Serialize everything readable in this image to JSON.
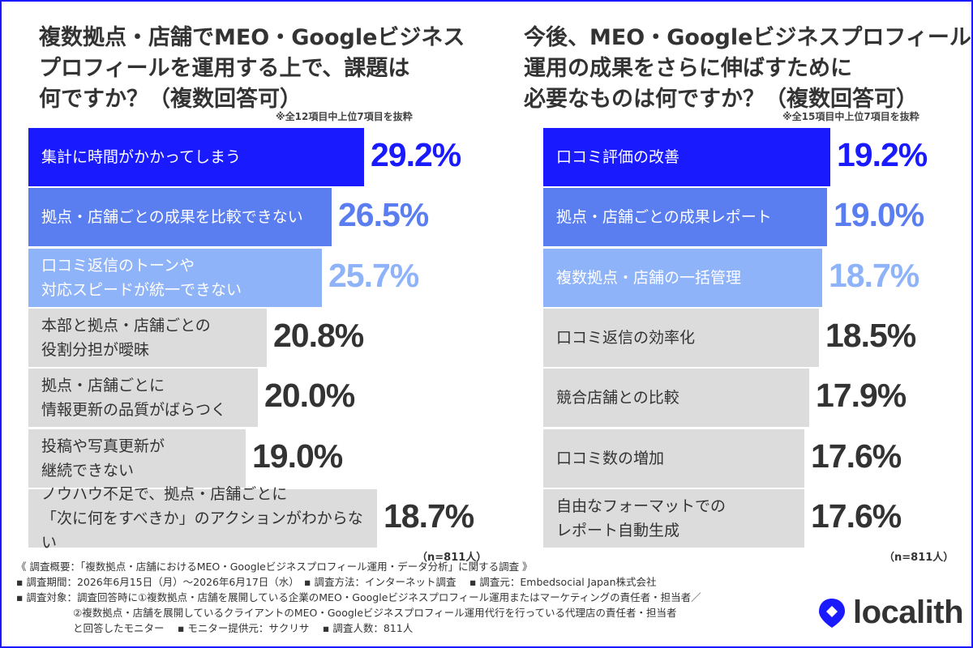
{
  "colors": {
    "rank1": "#1a1aff",
    "rank2": "#5a7df0",
    "rank3": "#8fb3f9",
    "other": "#dddcdd",
    "text_dark": "#333333",
    "border": "#1a1aff"
  },
  "chart_data": [
    {
      "type": "bar",
      "orientation": "horizontal",
      "title": "複数拠点・店舗でMEO・Googleビジネス\nプロフィールを運用する上で、課題は\n何ですか？（複数回答可）",
      "note": "※全12項目中上位7項目を抜粋",
      "n_label": "（n=811人）",
      "unit": "%",
      "categories": [
        "集計に時間がかかってしまう",
        "拠点・店舗ごとの成果を比較できない",
        "口コミ返信のトーンや\n対応スピードが統一できない",
        "本部と拠点・店舗ごとの\n役割分担が曖昧",
        "拠点・店舗ごとに\n情報更新の品質がばらつく",
        "投稿や写真更新が\n継続できない",
        "ノウハウ不足で、拠点・店舗ごとに\n「次に何をすべきか」のアクションがわからない"
      ],
      "values": [
        29.2,
        26.5,
        25.7,
        20.8,
        20.0,
        19.0,
        18.7
      ],
      "value_labels": [
        "29.2%",
        "26.5%",
        "25.7%",
        "20.8%",
        "20.0%",
        "19.0%",
        "18.7%"
      ]
    },
    {
      "type": "bar",
      "orientation": "horizontal",
      "title": "今後、MEO・Googleビジネスプロフィール\n運用の成果をさらに伸ばすために\n必要なものは何ですか？（複数回答可）",
      "note": "※全15項目中上位7項目を抜粋",
      "n_label": "（n=811人）",
      "unit": "%",
      "categories": [
        "口コミ評価の改善",
        "拠点・店舗ごとの成果レポート",
        "複数拠点・店舗の一括管理",
        "口コミ返信の効率化",
        "競合店舗との比較",
        "口コミ数の増加",
        "自由なフォーマットでの\nレポート自動生成"
      ],
      "values": [
        19.2,
        19.0,
        18.7,
        18.5,
        17.9,
        17.6,
        17.6
      ],
      "value_labels": [
        "19.2%",
        "19.0%",
        "18.7%",
        "18.5%",
        "17.9%",
        "17.6%",
        "17.6%"
      ]
    }
  ],
  "survey": {
    "lines": [
      "《 調査概要：「複数拠点・店舗におけるMEO・Googleビジネスプロフィール運用・データ分析」に関する調査 》",
      "▪ 調査期間：2026年6月15日（月）〜2026年6月17日（水）　▪ 調査方法：インターネット調査　 ▪ 調査元：Embedsocial Japan株式会社",
      "▪ 調査対象：調査回答時に①複数拠点・店舗を展開している企業のMEO・Googleビジネスプロフィール運用またはマーケティングの責任者・担当者／",
      "②複数拠点・店舗を展開しているクライアントのMEO・Googleビジネスプロフィール運用代行を行っている代理店の責任者・担当者",
      "と回答したモニター　 ▪ モニター提供元：サクリサ　 ▪ 調査人数：811人"
    ]
  },
  "logo": {
    "text": "localith",
    "icon": "location-pin-icon",
    "color": "#1a1aff"
  }
}
